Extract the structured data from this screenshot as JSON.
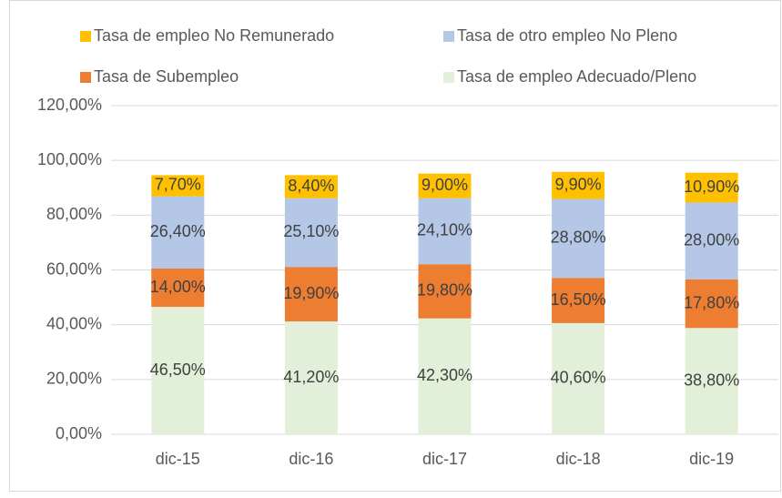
{
  "chart_data": {
    "type": "stacked_bar",
    "categories": [
      "dic-15",
      "dic-16",
      "dic-17",
      "dic-18",
      "dic-19"
    ],
    "series": [
      {
        "name": "Tasa de empleo Adecuado/Pleno",
        "color": "#e2efd9",
        "values": [
          46.5,
          41.2,
          42.3,
          40.6,
          38.8
        ],
        "value_labels": [
          "46,50%",
          "41,20%",
          "42,30%",
          "40,60%",
          "38,80%"
        ]
      },
      {
        "name": "Tasa de Subempleo",
        "color": "#ed7d31",
        "values": [
          14.0,
          19.9,
          19.8,
          16.5,
          17.8
        ],
        "value_labels": [
          "14,00%",
          "19,90%",
          "19,80%",
          "16,50%",
          "17,80%"
        ]
      },
      {
        "name": "Tasa de otro empleo No Pleno",
        "color": "#b4c7e7",
        "values": [
          26.4,
          25.1,
          24.1,
          28.8,
          28.0
        ],
        "value_labels": [
          "26,40%",
          "25,10%",
          "24,10%",
          "28,80%",
          "28,00%"
        ]
      },
      {
        "name": "Tasa de empleo No Remunerado",
        "color": "#ffc000",
        "values": [
          7.7,
          8.4,
          9.0,
          9.9,
          10.9
        ],
        "value_labels": [
          "7,70%",
          "8,40%",
          "9,00%",
          "9,90%",
          "10,90%"
        ]
      }
    ],
    "ylim": [
      0,
      120
    ],
    "yticks": [
      {
        "value": 0,
        "label": "0,00%"
      },
      {
        "value": 20,
        "label": "20,00%"
      },
      {
        "value": 40,
        "label": "40,00%"
      },
      {
        "value": 60,
        "label": "60,00%"
      },
      {
        "value": 80,
        "label": "80,00%"
      },
      {
        "value": 100,
        "label": "100,00%"
      },
      {
        "value": 120,
        "label": "120,00%"
      }
    ],
    "grid": true
  }
}
